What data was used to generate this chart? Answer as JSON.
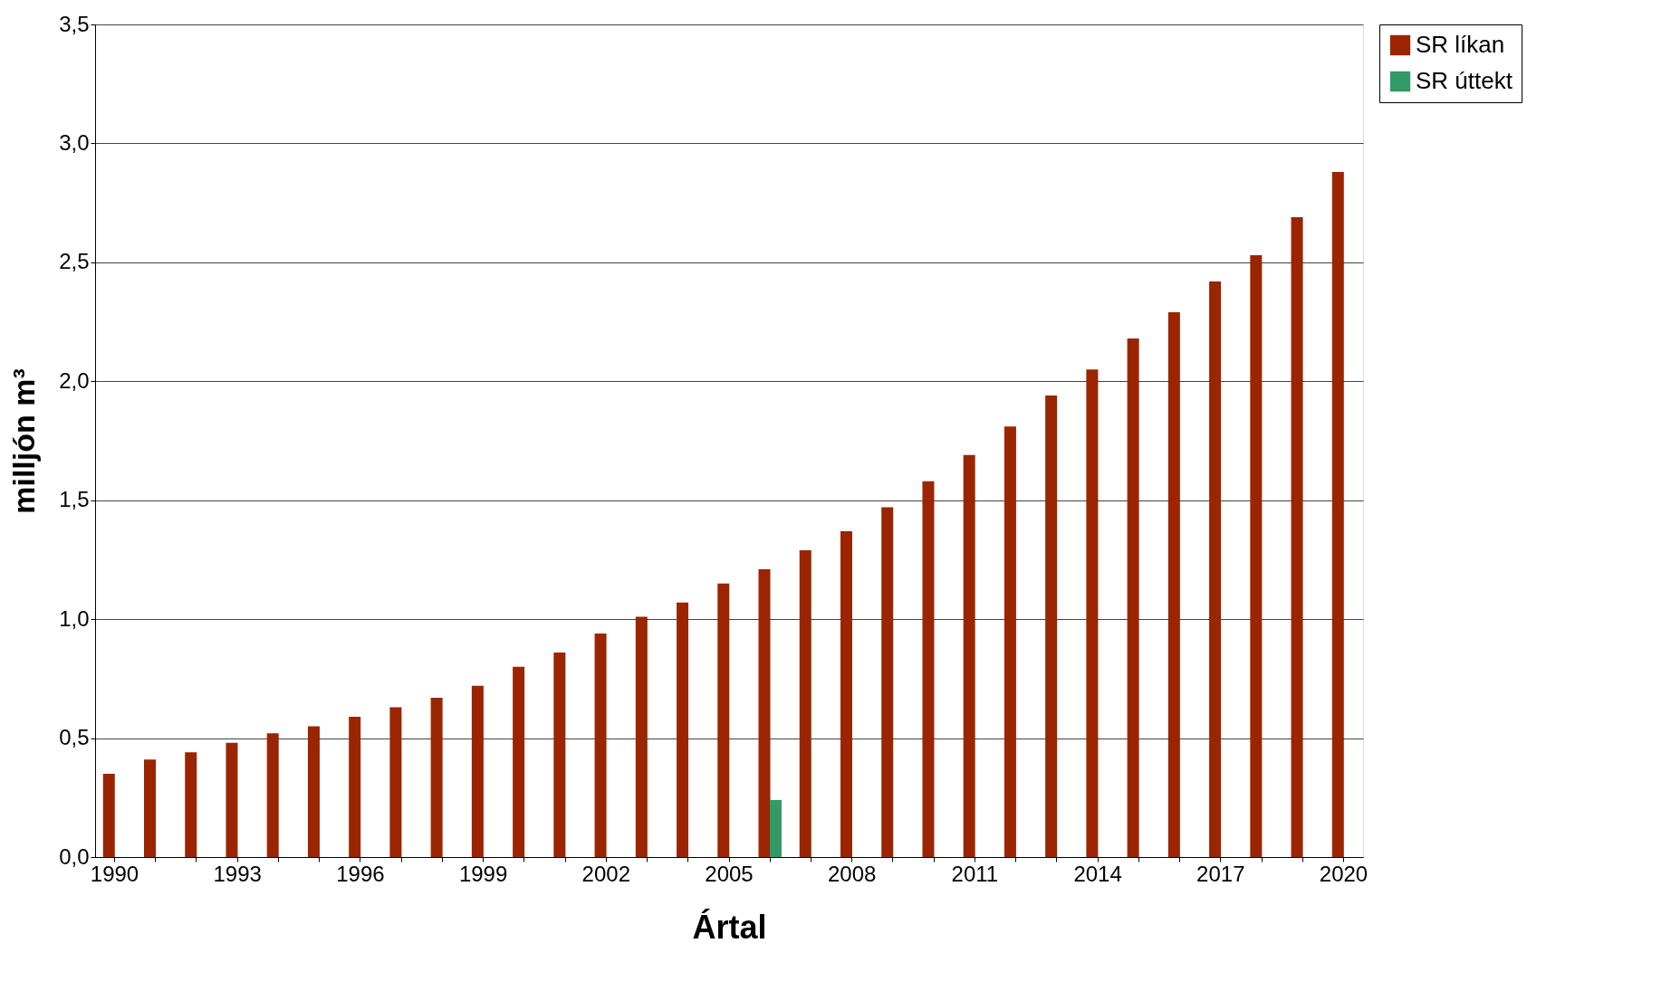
{
  "chart_data": {
    "type": "bar",
    "xlabel": "Ártal",
    "ylabel": "milljón m³",
    "categories": [
      "1990",
      null,
      null,
      "1993",
      null,
      null,
      "1996",
      null,
      null,
      "1999",
      null,
      null,
      "2002",
      null,
      null,
      "2005",
      null,
      null,
      "2008",
      null,
      null,
      "2011",
      null,
      null,
      "2014",
      null,
      null,
      "2017",
      null,
      null,
      "2020"
    ],
    "series": [
      {
        "name": "SR líkan",
        "color": "#9a2500",
        "values": [
          0.35,
          0.41,
          0.44,
          0.48,
          0.52,
          0.55,
          0.59,
          0.63,
          0.67,
          0.72,
          0.8,
          0.86,
          0.94,
          1.01,
          1.07,
          1.15,
          1.21,
          1.29,
          1.37,
          1.47,
          1.58,
          1.69,
          1.81,
          1.94,
          2.05,
          2.18,
          2.29,
          2.42,
          2.53,
          2.69,
          2.88
        ]
      },
      {
        "name": "SR úttekt",
        "color": "#339966",
        "values": [
          null,
          null,
          null,
          null,
          null,
          null,
          null,
          null,
          null,
          null,
          null,
          null,
          null,
          null,
          null,
          null,
          0.24,
          null,
          null,
          null,
          null,
          null,
          null,
          null,
          null,
          null,
          null,
          null,
          null,
          null,
          null
        ]
      }
    ],
    "ylim": [
      0,
      3.5
    ],
    "yticks": [
      {
        "value": 0,
        "label": "0,0"
      },
      {
        "value": 0.5,
        "label": "0,5"
      },
      {
        "value": 1,
        "label": "1,0"
      },
      {
        "value": 1.5,
        "label": "1,5"
      },
      {
        "value": 2,
        "label": "2,0"
      },
      {
        "value": 2.5,
        "label": "2,5"
      },
      {
        "value": 3,
        "label": "3,0"
      },
      {
        "value": 3.5,
        "label": "3,5"
      }
    ],
    "grid": "y",
    "legend": "right"
  }
}
